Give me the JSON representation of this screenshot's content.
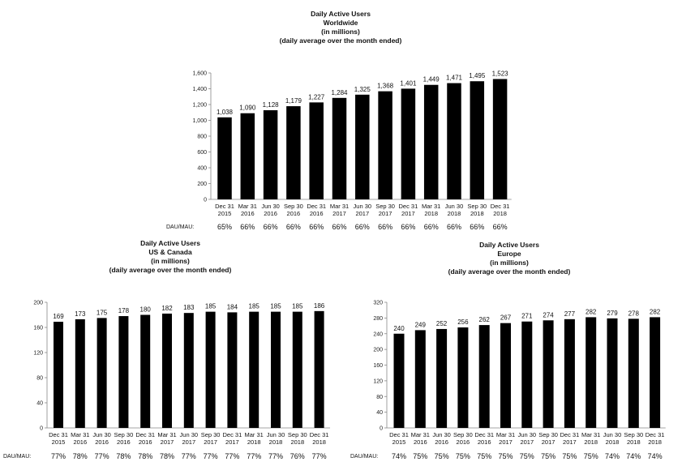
{
  "chart_data": [
    {
      "type": "bar",
      "title": [
        "Daily Active Users",
        "Worldwide",
        "(in millions)",
        "(daily average over the month ended)"
      ],
      "categories": [
        [
          "Dec 31",
          "2015"
        ],
        [
          "Mar 31",
          "2016"
        ],
        [
          "Jun 30",
          "2016"
        ],
        [
          "Sep 30",
          "2016"
        ],
        [
          "Dec 31",
          "2016"
        ],
        [
          "Mar 31",
          "2017"
        ],
        [
          "Jun 30",
          "2017"
        ],
        [
          "Sep 30",
          "2017"
        ],
        [
          "Dec 31",
          "2017"
        ],
        [
          "Mar 31",
          "2018"
        ],
        [
          "Jun 30",
          "2018"
        ],
        [
          "Sep 30",
          "2018"
        ],
        [
          "Dec 31",
          "2018"
        ]
      ],
      "values": [
        1038,
        1090,
        1128,
        1179,
        1227,
        1284,
        1325,
        1368,
        1401,
        1449,
        1471,
        1495,
        1523
      ],
      "value_labels": [
        "1,038",
        "1,090",
        "1,128",
        "1,179",
        "1,227",
        "1,284",
        "1,325",
        "1,368",
        "1,401",
        "1,449",
        "1,471",
        "1,495",
        "1,523"
      ],
      "ylim": [
        0,
        1600
      ],
      "yticks": [
        0,
        200,
        400,
        600,
        800,
        1000,
        1200,
        1400,
        1600
      ],
      "ytick_labels": [
        "0",
        "200",
        "400",
        "600",
        "800",
        "1,000",
        "1,200",
        "1,400",
        "1,600"
      ],
      "dau_mau_label": "DAU/MAU:",
      "dau_mau": [
        "65%",
        "66%",
        "66%",
        "66%",
        "66%",
        "66%",
        "66%",
        "66%",
        "66%",
        "66%",
        "66%",
        "66%",
        "66%"
      ],
      "bar_color": "#000000"
    },
    {
      "type": "bar",
      "title": [
        "Daily Active Users",
        "US & Canada",
        "(in millions)",
        "(daily average over the month ended)"
      ],
      "categories": [
        [
          "Dec 31",
          "2015"
        ],
        [
          "Mar 31",
          "2016"
        ],
        [
          "Jun 30",
          "2016"
        ],
        [
          "Sep 30",
          "2016"
        ],
        [
          "Dec 31",
          "2016"
        ],
        [
          "Mar 31",
          "2017"
        ],
        [
          "Jun 30",
          "2017"
        ],
        [
          "Sep 30",
          "2017"
        ],
        [
          "Dec 31",
          "2017"
        ],
        [
          "Mar 31",
          "2018"
        ],
        [
          "Jun 30",
          "2018"
        ],
        [
          "Sep 30",
          "2018"
        ],
        [
          "Dec 31",
          "2018"
        ]
      ],
      "values": [
        169,
        173,
        175,
        178,
        180,
        182,
        183,
        185,
        184,
        185,
        185,
        185,
        186
      ],
      "value_labels": [
        "169",
        "173",
        "175",
        "178",
        "180",
        "182",
        "183",
        "185",
        "184",
        "185",
        "185",
        "185",
        "186"
      ],
      "ylim": [
        0,
        200
      ],
      "yticks": [
        0,
        40,
        80,
        120,
        160,
        200
      ],
      "ytick_labels": [
        "0",
        "40",
        "80",
        "120",
        "160",
        "200"
      ],
      "dau_mau_label": "DAU/MAU:",
      "dau_mau": [
        "77%",
        "78%",
        "77%",
        "78%",
        "78%",
        "78%",
        "77%",
        "77%",
        "77%",
        "77%",
        "77%",
        "76%",
        "77%"
      ],
      "bar_color": "#000000"
    },
    {
      "type": "bar",
      "title": [
        "Daily Active Users",
        "Europe",
        "(in millions)",
        "(daily average over the month ended)"
      ],
      "categories": [
        [
          "Dec 31",
          "2015"
        ],
        [
          "Mar 31",
          "2016"
        ],
        [
          "Jun 30",
          "2016"
        ],
        [
          "Sep 30",
          "2016"
        ],
        [
          "Dec 31",
          "2016"
        ],
        [
          "Mar 31",
          "2017"
        ],
        [
          "Jun 30",
          "2017"
        ],
        [
          "Sep 30",
          "2017"
        ],
        [
          "Dec 31",
          "2017"
        ],
        [
          "Mar 31",
          "2018"
        ],
        [
          "Jun 30",
          "2018"
        ],
        [
          "Sep 30",
          "2018"
        ],
        [
          "Dec 31",
          "2018"
        ]
      ],
      "values": [
        240,
        249,
        252,
        256,
        262,
        267,
        271,
        274,
        277,
        282,
        279,
        278,
        282
      ],
      "value_labels": [
        "240",
        "249",
        "252",
        "256",
        "262",
        "267",
        "271",
        "274",
        "277",
        "282",
        "279",
        "278",
        "282"
      ],
      "ylim": [
        0,
        320
      ],
      "yticks": [
        0,
        40,
        80,
        120,
        160,
        200,
        240,
        280,
        320
      ],
      "ytick_labels": [
        "0",
        "40",
        "80",
        "120",
        "160",
        "200",
        "240",
        "280",
        "320"
      ],
      "dau_mau_label": "DAU/MAU:",
      "dau_mau": [
        "74%",
        "75%",
        "75%",
        "75%",
        "75%",
        "75%",
        "75%",
        "75%",
        "75%",
        "75%",
        "74%",
        "74%",
        "74%"
      ],
      "bar_color": "#000000"
    }
  ]
}
